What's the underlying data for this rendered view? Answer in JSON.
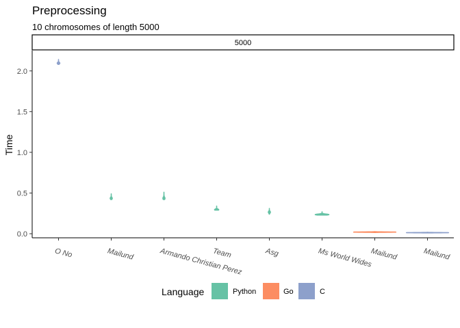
{
  "chart_data": {
    "type": "violin",
    "title": "Preprocessing",
    "subtitle": "10 chromosomes of length 5000",
    "facet_label": "5000",
    "xlabel": "",
    "ylabel": "Time",
    "ylim": [
      -0.05,
      2.25
    ],
    "y_ticks": [
      0.0,
      0.5,
      1.0,
      1.5,
      2.0
    ],
    "y_tick_labels": [
      "0.0",
      "0.5",
      "1.0",
      "1.5",
      "2.0"
    ],
    "grid": false,
    "legend_position": "bottom",
    "legend_title": "Language",
    "legend": [
      {
        "name": "Python",
        "color": "#66C2A5"
      },
      {
        "name": "Go",
        "color": "#FC8D62"
      },
      {
        "name": "C",
        "color": "#8DA0CB"
      }
    ],
    "categories": [
      "O No",
      "Mailund",
      "Armando Christian Perez",
      "Team",
      "Asg",
      "Ms World Wides",
      "Mailund",
      "Mailund"
    ],
    "series": [
      {
        "category": "O No",
        "language": "C",
        "min": 2.08,
        "max": 2.14,
        "median": 2.095,
        "max_halfwidth": 0.05
      },
      {
        "category": "Mailund",
        "language": "Python",
        "min": 0.42,
        "max": 0.49,
        "median": 0.435,
        "max_halfwidth": 0.04
      },
      {
        "category": "Armando Christian Perez",
        "language": "Python",
        "min": 0.42,
        "max": 0.51,
        "median": 0.435,
        "max_halfwidth": 0.04
      },
      {
        "category": "Team",
        "language": "Python",
        "min": 0.29,
        "max": 0.34,
        "median": 0.295,
        "max_halfwidth": 0.08
      },
      {
        "category": "Asg",
        "language": "Python",
        "min": 0.24,
        "max": 0.31,
        "median": 0.265,
        "max_halfwidth": 0.04
      },
      {
        "category": "Ms World Wides",
        "language": "Python",
        "min": 0.23,
        "max": 0.27,
        "median": 0.235,
        "max_halfwidth": 0.26
      },
      {
        "category": "Mailund",
        "language": "Go",
        "min": 0.015,
        "max": 0.025,
        "median": 0.02,
        "max_halfwidth": 0.8
      },
      {
        "category": "Mailund",
        "language": "C",
        "min": 0.01,
        "max": 0.018,
        "median": 0.013,
        "max_halfwidth": 0.8
      }
    ]
  }
}
